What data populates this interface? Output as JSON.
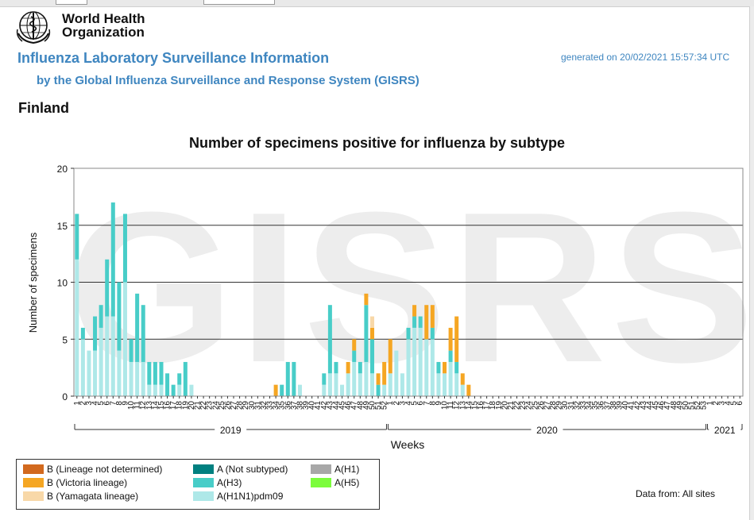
{
  "header": {
    "org_name_line1": "World Health",
    "org_name_line2": "Organization",
    "title": "Influenza Laboratory Surveillance Information",
    "subtitle": "by the Global Influenza Surveillance and Response System (GISRS)",
    "generated": "generated on 20/02/2021 15:57:34 UTC",
    "country": "Finland"
  },
  "watermark": "GISRS",
  "footer": {
    "data_from": "Data from: All sites"
  },
  "colors": {
    "B (Lineage not determined)": "#d2691e",
    "B (Victoria lineage)": "#f5a623",
    "B (Yamagata lineage)": "#f8d8a8",
    "A (Not subtyped)": "#008080",
    "A(H3)": "#48cdc8",
    "A(H1N1)pdm09": "#aee8e8",
    "A(H1)": "#a8a8a8",
    "A(H5)": "#7cfc3c"
  },
  "chart_data": {
    "type": "bar",
    "stacked": true,
    "title": "Number of specimens positive for influenza by subtype",
    "xlabel": "Weeks",
    "ylabel": "Number of specimens",
    "ylim": [
      0,
      20
    ],
    "yticks": [
      0,
      5,
      10,
      15,
      20
    ],
    "grid": true,
    "legend_position": "bottom-left",
    "years": [
      {
        "label": "2019",
        "first_week_index": 0,
        "last_week_index": 51
      },
      {
        "label": "2020",
        "first_week_index": 52,
        "last_week_index": 104
      },
      {
        "label": "2021",
        "first_week_index": 105,
        "last_week_index": 110
      }
    ],
    "week_labels": [
      "1",
      "2",
      "3",
      "4",
      "5",
      "6",
      "7",
      "8",
      "9",
      "10",
      "11",
      "12",
      "13",
      "14",
      "15",
      "16",
      "17",
      "18",
      "19",
      "20",
      "21",
      "22",
      "23",
      "24",
      "25",
      "26",
      "27",
      "28",
      "29",
      "30",
      "31",
      "32",
      "33",
      "34",
      "35",
      "36",
      "37",
      "38",
      "39",
      "40",
      "41",
      "42",
      "43",
      "44",
      "45",
      "46",
      "47",
      "48",
      "49",
      "50",
      "51",
      "52",
      "1",
      "2",
      "3",
      "4",
      "5",
      "6",
      "7",
      "8",
      "9",
      "10",
      "11",
      "12",
      "13",
      "14",
      "15",
      "16",
      "17",
      "18",
      "19",
      "20",
      "21",
      "22",
      "23",
      "24",
      "25",
      "26",
      "27",
      "28",
      "29",
      "30",
      "31",
      "32",
      "33",
      "34",
      "35",
      "36",
      "37",
      "38",
      "39",
      "40",
      "41",
      "42",
      "43",
      "44",
      "45",
      "46",
      "47",
      "48",
      "49",
      "50",
      "51",
      "52",
      "53",
      "1",
      "2",
      "3",
      "4",
      "5",
      "6"
    ],
    "series": [
      {
        "name": "B (Lineage not determined)",
        "values": [
          0,
          0,
          0,
          0,
          0,
          0,
          0,
          0,
          0,
          0,
          0,
          0,
          0,
          0,
          0,
          0,
          0,
          0,
          0,
          0,
          0,
          0,
          0,
          0,
          0,
          0,
          0,
          0,
          0,
          0,
          0,
          0,
          0,
          0,
          0,
          0,
          0,
          0,
          0,
          0,
          0,
          0,
          0,
          0,
          0,
          0,
          0,
          0,
          0,
          0,
          0,
          0,
          0,
          0,
          0,
          0,
          0,
          0,
          0,
          0,
          0,
          0,
          0,
          0,
          0,
          0,
          0,
          0,
          0,
          0,
          0,
          0,
          0,
          0,
          0,
          0,
          0,
          0,
          0,
          0,
          0,
          0,
          0,
          0,
          0,
          0,
          0,
          0,
          0,
          0,
          0,
          0,
          0,
          0,
          0,
          0,
          0,
          0,
          0,
          0,
          0,
          0,
          0,
          0,
          0,
          0,
          0,
          0,
          0,
          0,
          0
        ]
      },
      {
        "name": "B (Victoria lineage)",
        "values": [
          0,
          0,
          0,
          0,
          0,
          0,
          0,
          0,
          0,
          0,
          0,
          0,
          0,
          0,
          0,
          0,
          0,
          0,
          0,
          0,
          0,
          0,
          0,
          0,
          0,
          0,
          0,
          0,
          0,
          0,
          0,
          0,
          0,
          1,
          0,
          0,
          0,
          0,
          0,
          0,
          0,
          0,
          0,
          0,
          0,
          1,
          1,
          0,
          1,
          1,
          1,
          2,
          3,
          0,
          0,
          0,
          1,
          0,
          3,
          2,
          0,
          1,
          2,
          4,
          1,
          1,
          0,
          0,
          0,
          0,
          0,
          0,
          0,
          0,
          0,
          0,
          0,
          0,
          0,
          0,
          0,
          0,
          0,
          0,
          0,
          0,
          0,
          0,
          0,
          0,
          0,
          0,
          0,
          0,
          0,
          0,
          0,
          0,
          0,
          0,
          0,
          0,
          0,
          0,
          0,
          0,
          0,
          0,
          0,
          0,
          0
        ]
      },
      {
        "name": "B (Yamagata lineage)",
        "values": [
          0,
          0,
          0,
          0,
          0,
          0,
          0,
          0,
          0,
          0,
          0,
          0,
          0,
          0,
          0,
          0,
          0,
          0,
          0,
          0,
          0,
          0,
          0,
          0,
          0,
          0,
          0,
          0,
          0,
          0,
          0,
          0,
          0,
          0,
          0,
          0,
          0,
          0,
          0,
          0,
          0,
          0,
          0,
          0,
          0,
          0,
          0,
          0,
          0,
          1,
          0,
          0,
          0,
          0,
          0,
          0,
          0,
          0,
          0,
          0,
          0,
          0,
          0,
          0,
          0,
          0,
          0,
          0,
          0,
          0,
          0,
          0,
          0,
          0,
          0,
          0,
          0,
          0,
          0,
          0,
          0,
          0,
          0,
          0,
          0,
          0,
          0,
          0,
          0,
          0,
          0,
          0,
          0,
          0,
          0,
          0,
          0,
          0,
          0,
          0,
          0,
          0,
          0,
          0,
          0,
          0,
          0,
          0,
          0,
          0,
          0
        ]
      },
      {
        "name": "A (Not subtyped)",
        "values": [
          0,
          0,
          0,
          0,
          0,
          0,
          0,
          0,
          0,
          0,
          0,
          0,
          0,
          0,
          0,
          0,
          0,
          0,
          0,
          0,
          0,
          0,
          0,
          0,
          0,
          0,
          0,
          0,
          0,
          0,
          0,
          0,
          0,
          0,
          0,
          0,
          0,
          0,
          0,
          0,
          0,
          0,
          0,
          0,
          0,
          0,
          0,
          0,
          0,
          0,
          0,
          0,
          0,
          0,
          0,
          0,
          0,
          0,
          0,
          0,
          0,
          0,
          0,
          0,
          0,
          0,
          0,
          0,
          0,
          0,
          0,
          0,
          0,
          0,
          0,
          0,
          0,
          0,
          0,
          0,
          0,
          0,
          0,
          0,
          0,
          0,
          0,
          0,
          0,
          0,
          0,
          0,
          0,
          0,
          0,
          0,
          0,
          0,
          0,
          0,
          0,
          0,
          0,
          0,
          0,
          0,
          0,
          0,
          0,
          0,
          0
        ]
      },
      {
        "name": "A(H3)",
        "values": [
          4,
          1,
          0,
          3,
          2,
          5,
          10,
          6,
          6,
          2,
          6,
          5,
          2,
          2,
          2,
          2,
          1,
          1,
          3,
          0,
          0,
          0,
          0,
          0,
          0,
          0,
          0,
          0,
          0,
          0,
          0,
          0,
          0,
          0,
          1,
          3,
          3,
          0,
          0,
          0,
          0,
          1,
          6,
          1,
          0,
          0,
          1,
          1,
          5,
          3,
          1,
          0,
          0,
          0,
          0,
          1,
          1,
          1,
          0,
          1,
          1,
          0,
          1,
          1,
          0,
          0,
          0,
          0,
          0,
          0,
          0,
          0,
          0,
          0,
          0,
          0,
          0,
          0,
          0,
          0,
          0,
          0,
          0,
          0,
          0,
          0,
          0,
          0,
          0,
          0,
          0,
          0,
          0,
          0,
          0,
          0,
          0,
          0,
          0,
          0,
          0,
          0,
          0,
          0,
          0,
          0,
          0,
          0,
          0,
          0,
          0
        ]
      },
      {
        "name": "A(H1N1)pdm09",
        "values": [
          12,
          5,
          4,
          4,
          6,
          7,
          7,
          4,
          10,
          3,
          3,
          3,
          1,
          1,
          1,
          0,
          0,
          1,
          0,
          1,
          0,
          0,
          0,
          0,
          0,
          0,
          0,
          0,
          0,
          0,
          0,
          0,
          0,
          0,
          0,
          0,
          0,
          1,
          0,
          0,
          0,
          1,
          2,
          2,
          1,
          2,
          3,
          2,
          3,
          2,
          0,
          1,
          2,
          4,
          2,
          5,
          6,
          6,
          5,
          5,
          2,
          2,
          3,
          2,
          1,
          0,
          0,
          0,
          0,
          0,
          0,
          0,
          0,
          0,
          0,
          0,
          0,
          0,
          0,
          0,
          0,
          0,
          0,
          0,
          0,
          0,
          0,
          0,
          0,
          0,
          0,
          0,
          0,
          0,
          0,
          0,
          0,
          0,
          0,
          0,
          0,
          0,
          0,
          0,
          0,
          0,
          0,
          0,
          0,
          0,
          0
        ]
      },
      {
        "name": "A(H1)",
        "values": [
          0,
          0,
          0,
          0,
          0,
          0,
          0,
          0,
          0,
          0,
          0,
          0,
          0,
          0,
          0,
          0,
          0,
          0,
          0,
          0,
          0,
          0,
          0,
          0,
          0,
          0,
          0,
          0,
          0,
          0,
          0,
          0,
          0,
          0,
          0,
          0,
          0,
          0,
          0,
          0,
          0,
          0,
          0,
          0,
          0,
          0,
          0,
          0,
          0,
          0,
          0,
          0,
          0,
          0,
          0,
          0,
          0,
          0,
          0,
          0,
          0,
          0,
          0,
          0,
          0,
          0,
          0,
          0,
          0,
          0,
          0,
          0,
          0,
          0,
          0,
          0,
          0,
          0,
          0,
          0,
          0,
          0,
          0,
          0,
          0,
          0,
          0,
          0,
          0,
          0,
          0,
          0,
          0,
          0,
          0,
          0,
          0,
          0,
          0,
          0,
          0,
          0,
          0,
          0,
          0,
          0,
          0,
          0,
          0,
          0,
          0
        ]
      },
      {
        "name": "A(H5)",
        "values": [
          0,
          0,
          0,
          0,
          0,
          0,
          0,
          0,
          0,
          0,
          0,
          0,
          0,
          0,
          0,
          0,
          0,
          0,
          0,
          0,
          0,
          0,
          0,
          0,
          0,
          0,
          0,
          0,
          0,
          0,
          0,
          0,
          0,
          0,
          0,
          0,
          0,
          0,
          0,
          0,
          0,
          0,
          0,
          0,
          0,
          0,
          0,
          0,
          0,
          0,
          0,
          0,
          0,
          0,
          0,
          0,
          0,
          0,
          0,
          0,
          0,
          0,
          0,
          0,
          0,
          0,
          0,
          0,
          0,
          0,
          0,
          0,
          0,
          0,
          0,
          0,
          0,
          0,
          0,
          0,
          0,
          0,
          0,
          0,
          0,
          0,
          0,
          0,
          0,
          0,
          0,
          0,
          0,
          0,
          0,
          0,
          0,
          0,
          0,
          0,
          0,
          0,
          0,
          0,
          0,
          0,
          0,
          0,
          0,
          0,
          0
        ]
      }
    ],
    "legend": [
      "B (Lineage not determined)",
      "B (Victoria lineage)",
      "B (Yamagata lineage)",
      "A (Not subtyped)",
      "A(H3)",
      "A(H1N1)pdm09",
      "A(H1)",
      "A(H5)"
    ]
  }
}
